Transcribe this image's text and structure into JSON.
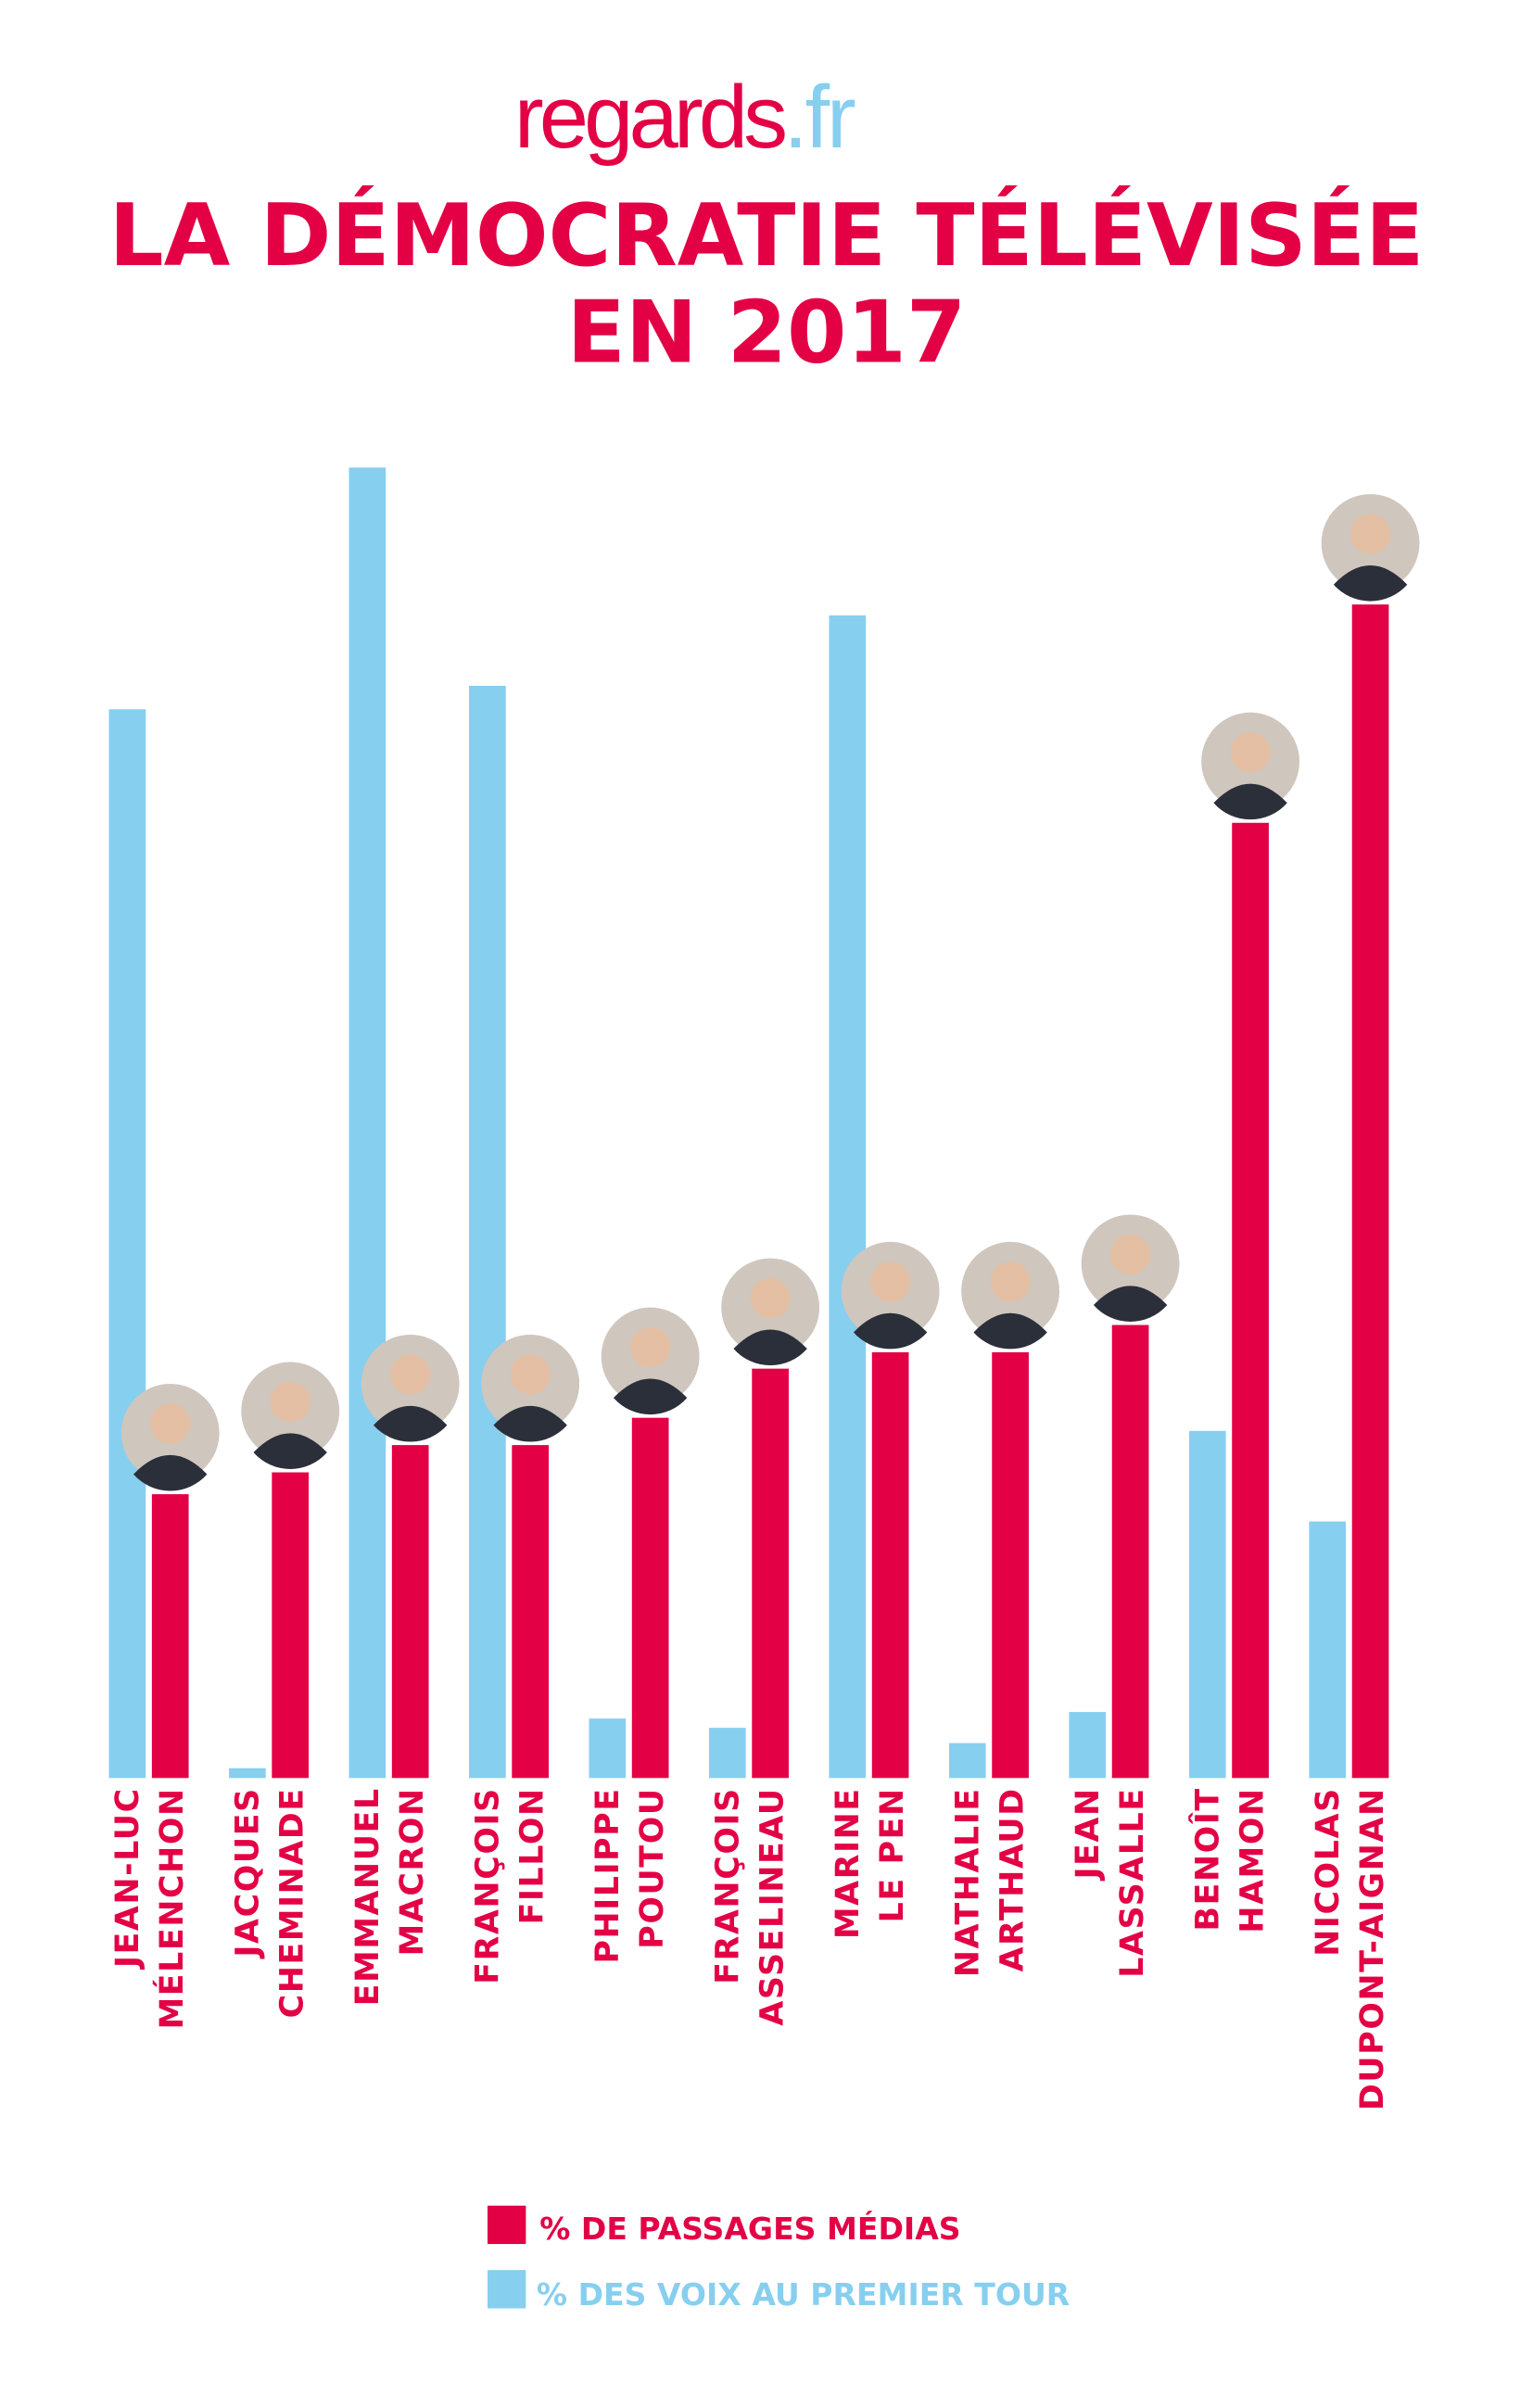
{
  "logo": {
    "main": "regards",
    "suffix": ".fr"
  },
  "title": {
    "line1": "LA DÉMOCRATIE TÉLÉVISÉE",
    "line2": "EN 2017"
  },
  "colors": {
    "media": "#e30045",
    "votes": "#87cfef",
    "logo_suffix": "#87cfef"
  },
  "chart_data": {
    "type": "bar",
    "title": "LA DÉMOCRATIE TÉLÉVISÉE EN 2017",
    "xlabel": "",
    "ylabel": "",
    "ylim": [
      0,
      24.5
    ],
    "grid": false,
    "legend_position": "bottom-center",
    "categories": [
      {
        "line1": "JEAN-LUC",
        "line2": "MÉLENCHON"
      },
      {
        "line1": "JACQUES",
        "line2": "CHEMINADE"
      },
      {
        "line1": "EMMANUEL",
        "line2": "MACRON"
      },
      {
        "line1": "FRANÇOIS",
        "line2": "FILLON"
      },
      {
        "line1": "PHILIPPE",
        "line2": "POUTOU"
      },
      {
        "line1": "FRANÇOIS",
        "line2": "ASSELINEAU"
      },
      {
        "line1": "MARINE",
        "line2": "LE PEN"
      },
      {
        "line1": "NATHALIE",
        "line2": "ARTHAUD"
      },
      {
        "line1": "JEAN",
        "line2": "LASSALLE"
      },
      {
        "line1": "BENOÎT",
        "line2": "HAMON"
      },
      {
        "line1": "NICOLAS",
        "line2": "DUPONT-AIGNAN"
      }
    ],
    "series": [
      {
        "name": "% DES VOIX AU PREMIER TOUR",
        "color": "#87cfef",
        "values": [
          19.58,
          0.18,
          24.01,
          20.01,
          1.09,
          0.92,
          21.3,
          0.64,
          1.21,
          6.36,
          4.7
        ]
      },
      {
        "name": "% DE PASSAGES MÉDIAS",
        "color": "#e30045",
        "values": [
          5.2,
          5.6,
          6.1,
          6.1,
          6.6,
          7.5,
          7.8,
          7.8,
          8.3,
          17.5,
          21.5
        ]
      }
    ]
  },
  "legend": {
    "media": "% DE PASSAGES MÉDIAS",
    "votes": "% DES VOIX AU PREMIER TOUR"
  }
}
